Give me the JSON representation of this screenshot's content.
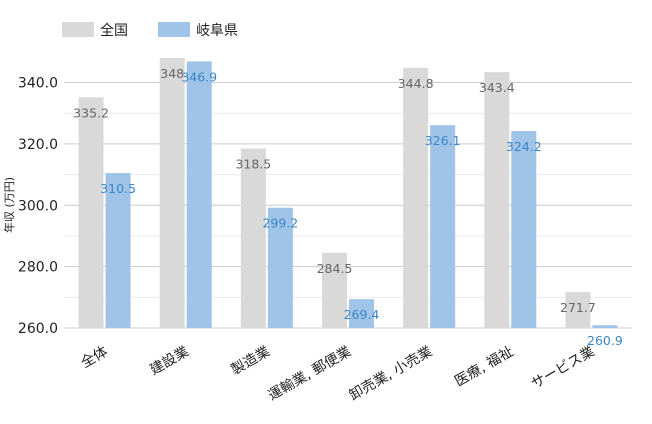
{
  "chart_data": {
    "type": "bar",
    "title": "",
    "xlabel": "",
    "ylabel": "年収 (万円)",
    "categories": [
      "全体",
      "建設業",
      "製造業",
      "運輸業, 郵便業",
      "卸売業, 小売業",
      "医療, 福祉",
      "サービス業"
    ],
    "series": [
      {
        "name": "全国",
        "color": "#d9d9d9",
        "label_color": "#666666",
        "values": [
          335.2,
          348,
          318.5,
          284.5,
          344.8,
          343.4,
          271.7
        ],
        "labels": [
          "335.2",
          "348",
          "318.5",
          "284.5",
          "344.8",
          "343.4",
          "271.7"
        ]
      },
      {
        "name": "岐阜県",
        "color": "#a0c4e8",
        "label_color": "#3b86c6",
        "values": [
          310.5,
          346.9,
          299.2,
          269.4,
          326.1,
          324.2,
          260.9
        ],
        "labels": [
          "310.5",
          "346.9",
          "299.2",
          "269.4",
          "326.1",
          "324.2",
          "260.9"
        ]
      }
    ],
    "ylim": [
      260,
      348
    ],
    "yticks": [
      "260.0",
      "280.0",
      "300.0",
      "320.0",
      "340.0"
    ],
    "ytick_values": [
      260,
      280,
      300,
      320,
      340
    ],
    "grid": true,
    "legend_position": "top-left"
  }
}
